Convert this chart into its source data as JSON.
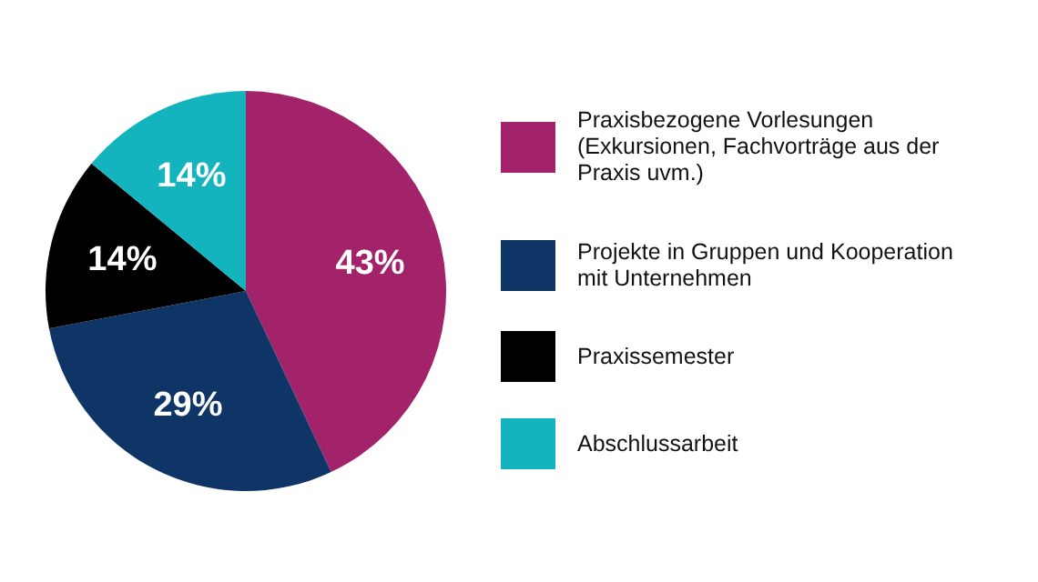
{
  "chart_data": {
    "type": "pie",
    "categories": [
      "Praxisbezogene Vorlesungen (Exkursionen, Fachvorträge aus der Praxis uvm.)",
      "Projekte in Gruppen und Kooperation mit Unternehmen",
      "Praxissemester",
      "Abschlussarbeit"
    ],
    "values": [
      43,
      29,
      14,
      14
    ],
    "colors": [
      "#a3236a",
      "#0f3466",
      "#000000",
      "#14b4bf"
    ],
    "value_labels": [
      "43%",
      "29%",
      "14%",
      "14%"
    ],
    "legend": "right"
  }
}
